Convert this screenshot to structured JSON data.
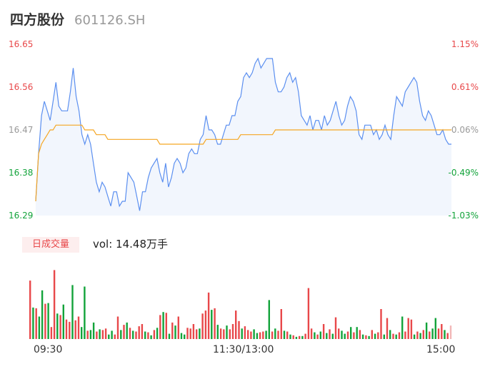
{
  "header": {
    "name": "四方股份",
    "code": "601126.SH"
  },
  "volume": {
    "tag": "日成交量",
    "text": "vol: 14.48万手"
  },
  "colors": {
    "up": "#e8484a",
    "down": "#12a33a",
    "neutral": "#999999",
    "price_line": "#5b8ff0",
    "avg_line": "#f5a623",
    "area": "#f2f6fd"
  },
  "chart_data": [
    {
      "type": "line",
      "title": "",
      "x_ticks": [
        "09:30",
        "11:30/13:00",
        "15:00"
      ],
      "y_ticks_left": [
        "16.65",
        "16.56",
        "16.47",
        "16.38",
        "16.29"
      ],
      "y_ticks_right": [
        "1.15%",
        "0.61%",
        "0.06%",
        "-0.49%",
        "-1.03%"
      ],
      "ylim": [
        16.29,
        16.65
      ],
      "series": [
        {
          "role": "price",
          "values": [
            16.32,
            16.42,
            16.5,
            16.53,
            16.51,
            16.49,
            16.53,
            16.57,
            16.52,
            16.51,
            16.51,
            16.51,
            16.55,
            16.6,
            16.54,
            16.51,
            16.46,
            16.44,
            16.46,
            16.44,
            16.4,
            16.36,
            16.34,
            16.36,
            16.35,
            16.33,
            16.31,
            16.34,
            16.34,
            16.31,
            16.32,
            16.32,
            16.38,
            16.37,
            16.36,
            16.33,
            16.3,
            16.34,
            16.34,
            16.37,
            16.39,
            16.4,
            16.41,
            16.38,
            16.36,
            16.4,
            16.35,
            16.37,
            16.4,
            16.41,
            16.4,
            16.38,
            16.39,
            16.42,
            16.43,
            16.42,
            16.42,
            16.45,
            16.46,
            16.5,
            16.47,
            16.47,
            16.46,
            16.44,
            16.44,
            16.46,
            16.48,
            16.48,
            16.5,
            16.5,
            16.53,
            16.54,
            16.58,
            16.59,
            16.58,
            16.59,
            16.61,
            16.62,
            16.6,
            16.61,
            16.62,
            16.62,
            16.62,
            16.57,
            16.55,
            16.55,
            16.56,
            16.58,
            16.59,
            16.57,
            16.58,
            16.55,
            16.5,
            16.49,
            16.48,
            16.5,
            16.47,
            16.49,
            16.49,
            16.47,
            16.5,
            16.48,
            16.49,
            16.51,
            16.53,
            16.5,
            16.48,
            16.49,
            16.52,
            16.54,
            16.53,
            16.51,
            16.46,
            16.45,
            16.48,
            16.48,
            16.48,
            16.46,
            16.47,
            16.45,
            16.46,
            16.48,
            16.46,
            16.45,
            16.5,
            16.54,
            16.53,
            16.52,
            16.55,
            16.56,
            16.57,
            16.58,
            16.57,
            16.53,
            16.5,
            16.49,
            16.51,
            16.5,
            16.48,
            16.46,
            16.46,
            16.47,
            16.45,
            16.44,
            16.44
          ]
        },
        {
          "role": "average",
          "values": [
            16.32,
            16.42,
            16.44,
            16.45,
            16.46,
            16.47,
            16.47,
            16.48,
            16.48,
            16.48,
            16.48,
            16.48,
            16.48,
            16.48,
            16.48,
            16.48,
            16.48,
            16.47,
            16.47,
            16.47,
            16.47,
            16.46,
            16.46,
            16.46,
            16.46,
            16.45,
            16.45,
            16.45,
            16.45,
            16.45,
            16.45,
            16.45,
            16.45,
            16.45,
            16.45,
            16.45,
            16.45,
            16.45,
            16.45,
            16.45,
            16.45,
            16.45,
            16.45,
            16.44,
            16.44,
            16.44,
            16.44,
            16.44,
            16.44,
            16.44,
            16.44,
            16.44,
            16.44,
            16.44,
            16.44,
            16.44,
            16.44,
            16.44,
            16.44,
            16.45,
            16.45,
            16.45,
            16.45,
            16.45,
            16.45,
            16.45,
            16.45,
            16.45,
            16.45,
            16.45,
            16.45,
            16.46,
            16.46,
            16.46,
            16.46,
            16.46,
            16.46,
            16.46,
            16.46,
            16.46,
            16.46,
            16.46,
            16.46,
            16.47,
            16.47,
            16.47,
            16.47,
            16.47,
            16.47,
            16.47,
            16.47,
            16.47,
            16.47,
            16.47,
            16.47,
            16.47,
            16.47,
            16.47,
            16.47,
            16.47,
            16.47,
            16.47,
            16.47,
            16.47,
            16.47,
            16.47,
            16.47,
            16.47,
            16.47,
            16.47,
            16.47,
            16.47,
            16.47,
            16.47,
            16.47,
            16.47,
            16.47,
            16.47,
            16.47,
            16.47,
            16.47,
            16.47,
            16.47,
            16.47,
            16.47,
            16.47,
            16.47,
            16.47,
            16.47,
            16.47,
            16.47,
            16.47,
            16.47,
            16.47,
            16.47,
            16.47,
            16.47,
            16.47,
            16.47,
            16.47,
            16.47,
            16.47,
            16.47,
            16.47,
            16.47
          ]
        }
      ]
    },
    {
      "type": "bar",
      "title": "日成交量",
      "values": [
        {
          "v": 0.78,
          "d": "up"
        },
        {
          "v": 0.42,
          "d": "down"
        },
        {
          "v": 0.41,
          "d": "up"
        },
        {
          "v": 0.3,
          "d": "down"
        },
        {
          "v": 0.65,
          "d": "down"
        },
        {
          "v": 0.47,
          "d": "up"
        },
        {
          "v": 0.48,
          "d": "down"
        },
        {
          "v": 0.16,
          "d": "up"
        },
        {
          "v": 0.92,
          "d": "up"
        },
        {
          "v": 0.34,
          "d": "down"
        },
        {
          "v": 0.32,
          "d": "up"
        },
        {
          "v": 0.46,
          "d": "down"
        },
        {
          "v": 0.26,
          "d": "up"
        },
        {
          "v": 0.23,
          "d": "up"
        },
        {
          "v": 0.72,
          "d": "down"
        },
        {
          "v": 0.25,
          "d": "up"
        },
        {
          "v": 0.3,
          "d": "up"
        },
        {
          "v": 0.16,
          "d": "down"
        },
        {
          "v": 0.7,
          "d": "down"
        },
        {
          "v": 0.11,
          "d": "up"
        },
        {
          "v": 0.12,
          "d": "down"
        },
        {
          "v": 0.22,
          "d": "down"
        },
        {
          "v": 0.1,
          "d": "up"
        },
        {
          "v": 0.13,
          "d": "down"
        },
        {
          "v": 0.12,
          "d": "up"
        },
        {
          "v": 0.14,
          "d": "up"
        },
        {
          "v": 0.06,
          "d": "down"
        },
        {
          "v": 0.11,
          "d": "down"
        },
        {
          "v": 0.06,
          "d": "up"
        },
        {
          "v": 0.3,
          "d": "up"
        },
        {
          "v": 0.12,
          "d": "down"
        },
        {
          "v": 0.19,
          "d": "up"
        },
        {
          "v": 0.22,
          "d": "down"
        },
        {
          "v": 0.15,
          "d": "up"
        },
        {
          "v": 0.11,
          "d": "down"
        },
        {
          "v": 0.1,
          "d": "up"
        },
        {
          "v": 0.17,
          "d": "up"
        },
        {
          "v": 0.2,
          "d": "up"
        },
        {
          "v": 0.1,
          "d": "down"
        },
        {
          "v": 0.09,
          "d": "up"
        },
        {
          "v": 0.05,
          "d": "down"
        },
        {
          "v": 0.12,
          "d": "up"
        },
        {
          "v": 0.15,
          "d": "down"
        },
        {
          "v": 0.32,
          "d": "up"
        },
        {
          "v": 0.36,
          "d": "down"
        },
        {
          "v": 0.35,
          "d": "up"
        },
        {
          "v": 0.07,
          "d": "down"
        },
        {
          "v": 0.22,
          "d": "up"
        },
        {
          "v": 0.18,
          "d": "down"
        },
        {
          "v": 0.3,
          "d": "up"
        },
        {
          "v": 0.08,
          "d": "down"
        },
        {
          "v": 0.06,
          "d": "down"
        },
        {
          "v": 0.15,
          "d": "up"
        },
        {
          "v": 0.14,
          "d": "up"
        },
        {
          "v": 0.2,
          "d": "up"
        },
        {
          "v": 0.13,
          "d": "up"
        },
        {
          "v": 0.14,
          "d": "down"
        },
        {
          "v": 0.34,
          "d": "up"
        },
        {
          "v": 0.38,
          "d": "up"
        },
        {
          "v": 0.62,
          "d": "up"
        },
        {
          "v": 0.39,
          "d": "down"
        },
        {
          "v": 0.41,
          "d": "up"
        },
        {
          "v": 0.19,
          "d": "down"
        },
        {
          "v": 0.14,
          "d": "up"
        },
        {
          "v": 0.13,
          "d": "up"
        },
        {
          "v": 0.18,
          "d": "down"
        },
        {
          "v": 0.13,
          "d": "up"
        },
        {
          "v": 0.2,
          "d": "up"
        },
        {
          "v": 0.38,
          "d": "up"
        },
        {
          "v": 0.24,
          "d": "up"
        },
        {
          "v": 0.14,
          "d": "down"
        },
        {
          "v": 0.17,
          "d": "up"
        },
        {
          "v": 0.12,
          "d": "up"
        },
        {
          "v": 0.1,
          "d": "up"
        },
        {
          "v": 0.13,
          "d": "down"
        },
        {
          "v": 0.08,
          "d": "down"
        },
        {
          "v": 0.09,
          "d": "up"
        },
        {
          "v": 0.1,
          "d": "up"
        },
        {
          "v": 0.11,
          "d": "down"
        },
        {
          "v": 0.52,
          "d": "down"
        },
        {
          "v": 0.1,
          "d": "up"
        },
        {
          "v": 0.14,
          "d": "down"
        },
        {
          "v": 0.11,
          "d": "up"
        },
        {
          "v": 0.4,
          "d": "up"
        },
        {
          "v": 0.11,
          "d": "down"
        },
        {
          "v": 0.1,
          "d": "up"
        },
        {
          "v": 0.06,
          "d": "down"
        },
        {
          "v": 0.05,
          "d": "up"
        },
        {
          "v": 0.03,
          "d": "down"
        },
        {
          "v": 0.04,
          "d": "up"
        },
        {
          "v": 0.04,
          "d": "down"
        },
        {
          "v": 0.07,
          "d": "up"
        },
        {
          "v": 0.68,
          "d": "up"
        },
        {
          "v": 0.14,
          "d": "up"
        },
        {
          "v": 0.09,
          "d": "down"
        },
        {
          "v": 0.06,
          "d": "up"
        },
        {
          "v": 0.1,
          "d": "down"
        },
        {
          "v": 0.2,
          "d": "up"
        },
        {
          "v": 0.08,
          "d": "down"
        },
        {
          "v": 0.13,
          "d": "up"
        },
        {
          "v": 0.07,
          "d": "down"
        },
        {
          "v": 0.29,
          "d": "up"
        },
        {
          "v": 0.14,
          "d": "up"
        },
        {
          "v": 0.11,
          "d": "down"
        },
        {
          "v": 0.07,
          "d": "down"
        },
        {
          "v": 0.1,
          "d": "up"
        },
        {
          "v": 0.16,
          "d": "down"
        },
        {
          "v": 0.09,
          "d": "up"
        },
        {
          "v": 0.16,
          "d": "down"
        },
        {
          "v": 0.12,
          "d": "up"
        },
        {
          "v": 0.06,
          "d": "down"
        },
        {
          "v": 0.05,
          "d": "up"
        },
        {
          "v": 0.04,
          "d": "down"
        },
        {
          "v": 0.12,
          "d": "up"
        },
        {
          "v": 0.07,
          "d": "down"
        },
        {
          "v": 0.09,
          "d": "up"
        },
        {
          "v": 0.4,
          "d": "up"
        },
        {
          "v": 0.06,
          "d": "down"
        },
        {
          "v": 0.28,
          "d": "up"
        },
        {
          "v": 0.12,
          "d": "down"
        },
        {
          "v": 0.07,
          "d": "up"
        },
        {
          "v": 0.06,
          "d": "down"
        },
        {
          "v": 0.09,
          "d": "up"
        },
        {
          "v": 0.3,
          "d": "down"
        },
        {
          "v": 0.1,
          "d": "up"
        },
        {
          "v": 0.28,
          "d": "up"
        },
        {
          "v": 0.26,
          "d": "up"
        },
        {
          "v": 0.06,
          "d": "down"
        },
        {
          "v": 0.1,
          "d": "up"
        },
        {
          "v": 0.08,
          "d": "down"
        },
        {
          "v": 0.12,
          "d": "up"
        },
        {
          "v": 0.22,
          "d": "down"
        },
        {
          "v": 0.1,
          "d": "up"
        },
        {
          "v": 0.14,
          "d": "down"
        },
        {
          "v": 0.28,
          "d": "down"
        },
        {
          "v": 0.14,
          "d": "up"
        },
        {
          "v": 0.2,
          "d": "up"
        },
        {
          "v": 0.12,
          "d": "down"
        },
        {
          "v": 0.08,
          "d": "up"
        },
        {
          "v": 0.18,
          "d": "neutral"
        }
      ]
    }
  ]
}
